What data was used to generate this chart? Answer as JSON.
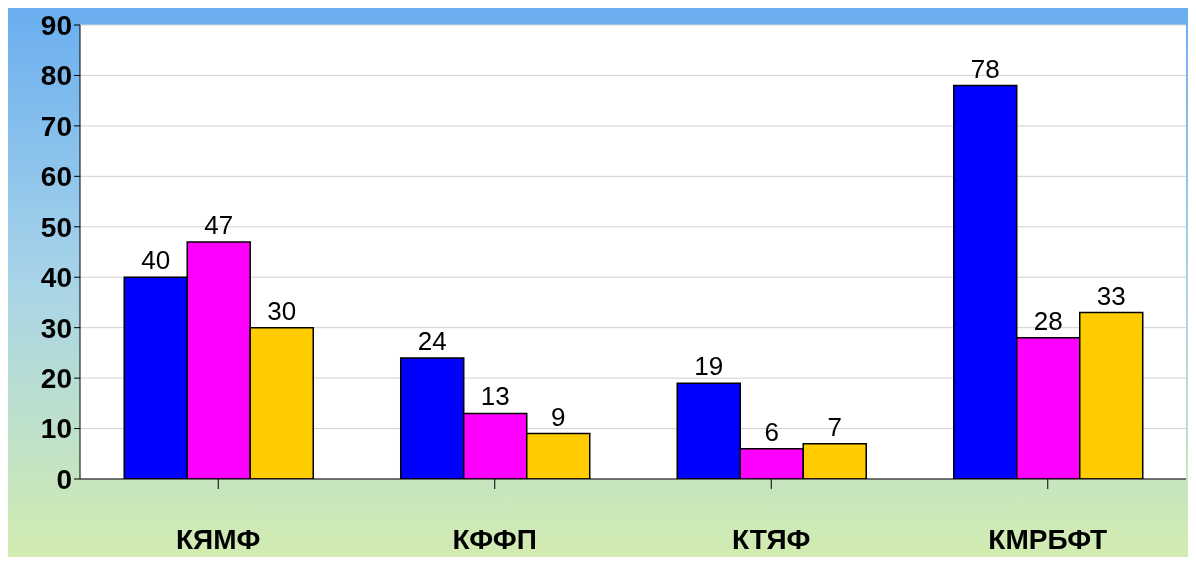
{
  "chart_data": {
    "type": "bar",
    "categories": [
      "КЯМФ",
      "КФФП",
      "КТЯФ",
      "КМРБФТ"
    ],
    "series": [
      {
        "color": "#0000ff",
        "values": [
          40,
          24,
          19,
          78
        ]
      },
      {
        "color": "#ff00ff",
        "values": [
          47,
          13,
          6,
          28
        ]
      },
      {
        "color": "#ffcc00",
        "values": [
          30,
          9,
          7,
          33
        ]
      }
    ],
    "ylim": [
      0,
      90
    ],
    "yticks": [
      0,
      10,
      20,
      30,
      40,
      50,
      60,
      70,
      80,
      90
    ],
    "grid": "y",
    "data_labels": true,
    "legend": false
  }
}
